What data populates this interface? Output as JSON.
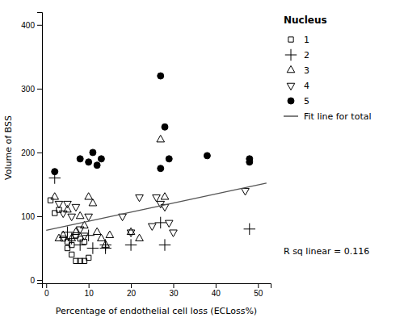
{
  "chart_data": {
    "type": "scatter",
    "x_label": "Percentage of endothelial cell loss (ECLoss%)",
    "y_label": "Volume of BSS",
    "legend_title": "Nucleus",
    "legend": "right",
    "grid": false,
    "series": [
      {
        "name": "1",
        "marker": "square-open",
        "color": "#000000",
        "x": [
          1,
          2,
          3,
          4,
          5,
          6,
          7,
          8,
          9,
          10,
          5,
          6,
          7,
          8,
          9
        ],
        "values": [
          125,
          105,
          110,
          65,
          60,
          55,
          30,
          30,
          30,
          35,
          50,
          40,
          70,
          65,
          60
        ]
      },
      {
        "name": "2",
        "marker": "plus",
        "color": "#000000",
        "x": [
          2,
          5,
          6,
          8,
          10,
          11,
          14,
          14,
          20,
          27,
          28,
          48
        ],
        "values": [
          160,
          75,
          65,
          55,
          70,
          50,
          55,
          50,
          55,
          90,
          55,
          80
        ]
      },
      {
        "name": "3",
        "marker": "triangle-up-open",
        "color": "#000000",
        "x": [
          2,
          3,
          4,
          5,
          6,
          7,
          8,
          9,
          10,
          11,
          12,
          13,
          14,
          15,
          20,
          22,
          27,
          28
        ],
        "values": [
          130,
          65,
          70,
          110,
          65,
          75,
          100,
          85,
          130,
          120,
          75,
          65,
          55,
          70,
          75,
          65,
          220,
          130
        ]
      },
      {
        "name": "4",
        "marker": "triangle-down-open",
        "color": "#000000",
        "x": [
          3,
          4,
          5,
          6,
          7,
          8,
          9,
          10,
          18,
          20,
          22,
          25,
          26,
          27,
          28,
          29,
          30,
          47
        ],
        "values": [
          120,
          105,
          120,
          100,
          115,
          80,
          70,
          100,
          100,
          75,
          130,
          85,
          130,
          120,
          115,
          90,
          75,
          140
        ]
      },
      {
        "name": "5",
        "marker": "circle",
        "color": "#000000",
        "x": [
          2,
          8,
          10,
          11,
          12,
          13,
          27,
          27,
          28,
          29,
          38,
          48,
          48
        ],
        "values": [
          170,
          190,
          185,
          200,
          180,
          190,
          320,
          175,
          240,
          190,
          195,
          190,
          185
        ]
      },
      {
        "name": "Fit line for total",
        "type": "line",
        "color": "#555555",
        "x": [
          0,
          52
        ],
        "values": [
          78,
          152
        ]
      }
    ],
    "annotations": [
      "R sq linear = 0.116"
    ],
    "xlim": [
      -1,
      53
    ],
    "ylim": [
      -5,
      420
    ],
    "xticks": [
      0,
      10,
      20,
      30,
      40,
      50
    ],
    "yticks": [
      0,
      100,
      200,
      300,
      400
    ]
  }
}
